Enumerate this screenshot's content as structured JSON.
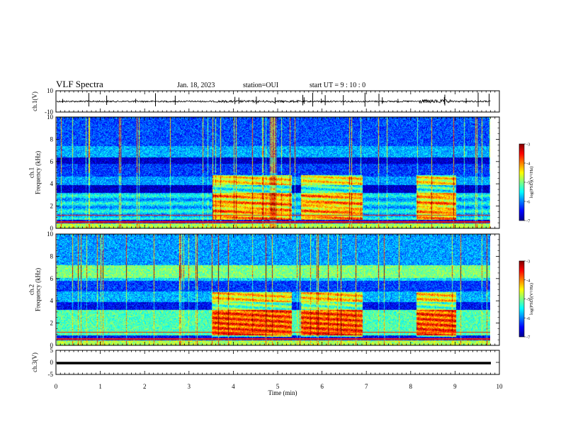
{
  "header": {
    "title": "VLF Spectra",
    "date": "Jan. 18, 2023",
    "station": "station=OUI",
    "start": "start  UT =  9 : 10 : 0"
  },
  "colors": {
    "jet": [
      "#00008f",
      "#0000ff",
      "#0080ff",
      "#00ffff",
      "#80ff80",
      "#ffff00",
      "#ff8000",
      "#ff0000",
      "#800000"
    ]
  },
  "chart_data": [
    {
      "type": "line",
      "name": "ch1-waveform",
      "ylabel": "ch.1(V)",
      "ylim": [
        -10,
        10
      ],
      "yticks": [
        "10",
        "-10"
      ],
      "xlim": [
        0,
        10
      ]
    },
    {
      "type": "heatmap",
      "name": "ch1-spectrogram",
      "ylabel": "ch.1\nFrequency (kHz)",
      "ylim": [
        0,
        10
      ],
      "yticks": [
        "0",
        "2",
        "4",
        "6",
        "8",
        "10"
      ],
      "xlim": [
        0,
        10
      ],
      "colorbar": {
        "label": "log(PSD)(V²/Hz)",
        "range": [
          -7,
          -3
        ],
        "ticks": [
          "-3",
          "-4",
          "-5",
          "-6",
          "-7"
        ]
      }
    },
    {
      "type": "heatmap",
      "name": "ch2-spectrogram",
      "ylabel": "ch.2\nFrequency (kHz)",
      "ylim": [
        0,
        10
      ],
      "yticks": [
        "0",
        "2",
        "4",
        "6",
        "8",
        "10"
      ],
      "xlim": [
        0,
        10
      ],
      "colorbar": {
        "label": "log(PSD)(V²/Hz)",
        "range": [
          -7,
          -3
        ],
        "ticks": [
          "-3",
          "-4",
          "-5",
          "-6",
          "-7"
        ]
      }
    },
    {
      "type": "line",
      "name": "ch3-waveform",
      "ylabel": "ch.3(V)",
      "ylim": [
        -5,
        5
      ],
      "yticks": [
        "5",
        "0",
        "-5"
      ],
      "xlim": [
        0,
        10
      ]
    }
  ],
  "xaxis": {
    "label": "Time (min)",
    "ticks": [
      "0",
      "1",
      "2",
      "3",
      "4",
      "5",
      "6",
      "7",
      "8",
      "9",
      "10"
    ]
  }
}
